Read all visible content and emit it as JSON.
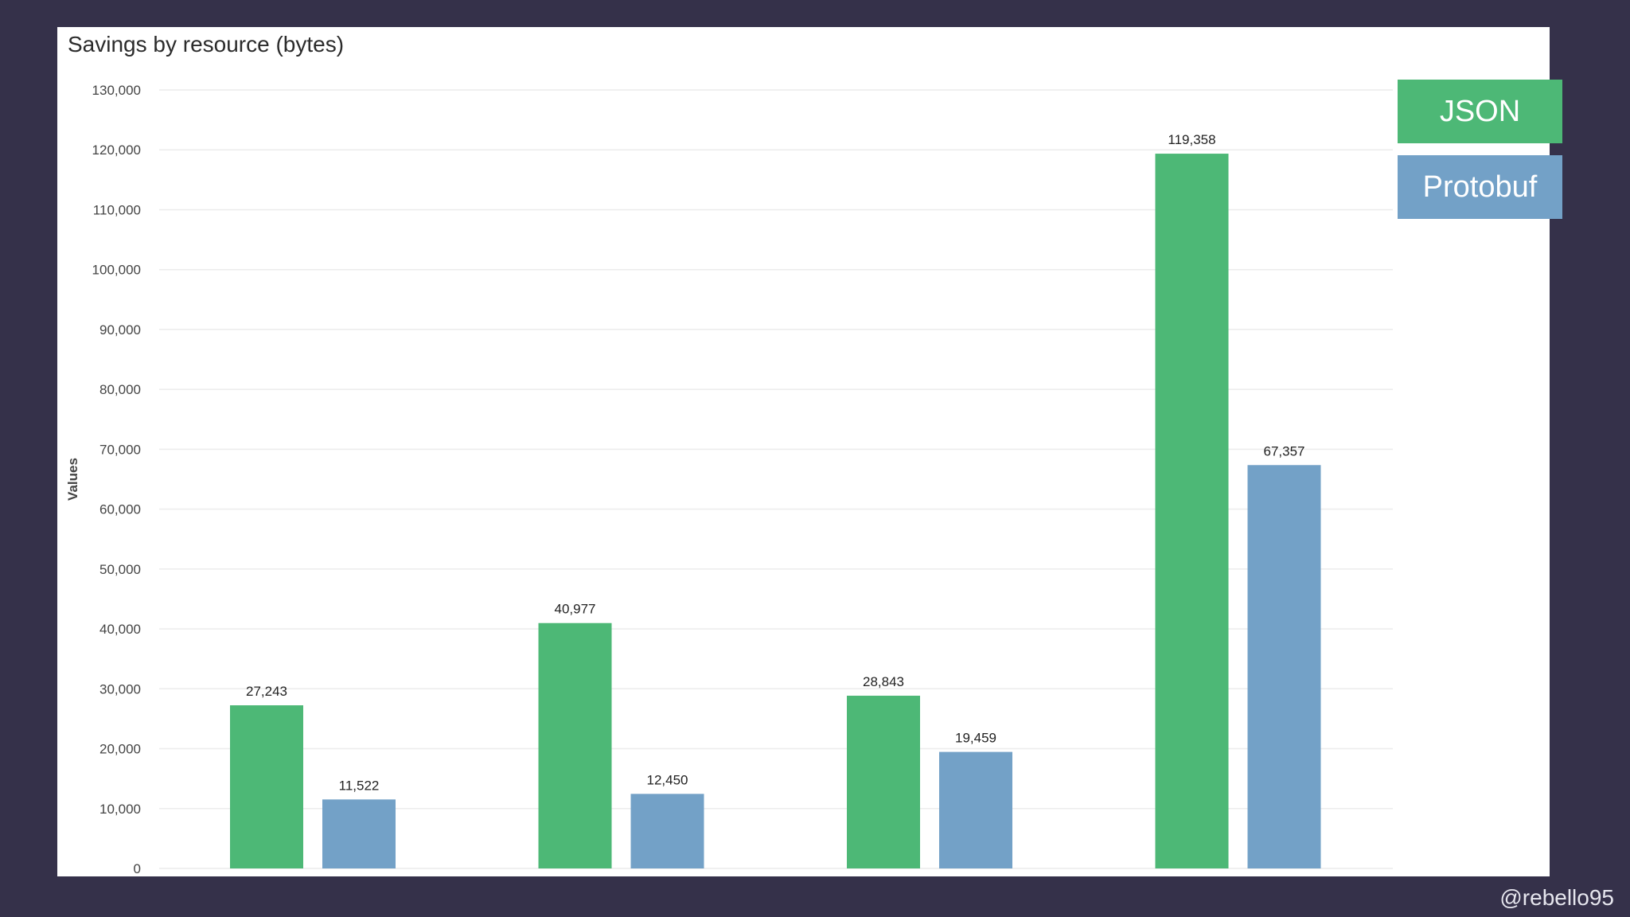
{
  "watermark": "@rebello95",
  "colors": {
    "background": "#35314a",
    "panel": "#ffffff",
    "json": "#4db876",
    "protobuf": "#73a1c7",
    "grid": "#ececec"
  },
  "chart_data": {
    "type": "bar",
    "title": "Savings by resource (bytes)",
    "xlabel": "",
    "ylabel": "Values",
    "ylim": [
      0,
      130000
    ],
    "yticks": [
      "0",
      "10,000",
      "20,000",
      "30,000",
      "40,000",
      "50,000",
      "60,000",
      "70,000",
      "80,000",
      "90,000",
      "100,000",
      "110,000",
      "120,000",
      "130,000"
    ],
    "categories": [
      "",
      "",
      "",
      ""
    ],
    "grid": true,
    "legend_placement": "top-right",
    "series": [
      {
        "name": "JSON",
        "color": "#4db876",
        "values": [
          27243,
          40977,
          28843,
          119358
        ],
        "labels": [
          "27,243",
          "40,977",
          "28,843",
          "119,358"
        ]
      },
      {
        "name": "Protobuf",
        "color": "#73a1c7",
        "values": [
          11522,
          12450,
          19459,
          67357
        ],
        "labels": [
          "11,522",
          "12,450",
          "19,459",
          "67,357"
        ]
      }
    ]
  }
}
